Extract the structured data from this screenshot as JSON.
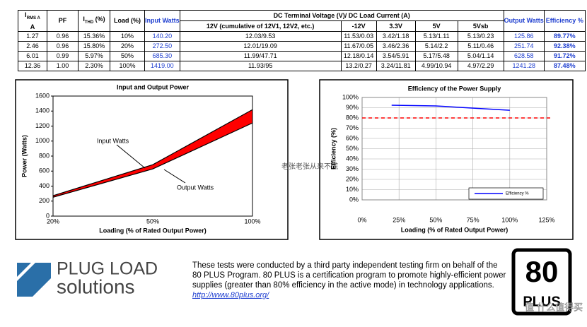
{
  "table": {
    "header_top": [
      {
        "text": "I",
        "sub": "RMS A",
        "line2": "A"
      },
      "PF",
      {
        "text": "I",
        "sub": "THD",
        "after": " (%)"
      },
      "Load (%)",
      "Input Watts",
      "DC Terminal Voltage (V)/ DC Load Current (A)",
      "Output Watts",
      "Efficiency %"
    ],
    "header_sub": [
      "12V (cumulative of 12V1, 12V2, etc.)",
      "-12V",
      "3.3V",
      "5V",
      "5Vsb"
    ],
    "rows": [
      [
        "1.27",
        "0.96",
        "15.36%",
        "10%",
        "140.20",
        "12.03/9.53",
        "11.53/0.03",
        "3.42/1.18",
        "5.13/1.11",
        "5.13/0.23",
        "125.86",
        "89.77%"
      ],
      [
        "2.46",
        "0.96",
        "15.80%",
        "20%",
        "272.50",
        "12.01/19.09",
        "11.67/0.05",
        "3.46/2.36",
        "5.14/2.2",
        "5.11/0.46",
        "251.74",
        "92.38%"
      ],
      [
        "6.01",
        "0.99",
        "5.97%",
        "50%",
        "685.30",
        "11.99/47.71",
        "12.18/0.14",
        "3.54/5.91",
        "5.17/5.48",
        "5.04/1.14",
        "628.58",
        "91.72%"
      ],
      [
        "12.36",
        "1.00",
        "2.30%",
        "100%",
        "1419.00",
        "11.93/95",
        "13.2/0.27",
        "3.24/11.81",
        "4.99/10.94",
        "4.97/2.29",
        "1241.28",
        "87.48%"
      ]
    ]
  },
  "chart_data": [
    {
      "type": "band",
      "title": "Input and Output Power",
      "x_label": "Loading (% of Rated Output Power)",
      "y_label": "Power (Watts)",
      "categories": [
        "20%",
        "50%",
        "100%"
      ],
      "series": [
        {
          "name": "Input Watts",
          "color": "#000000",
          "values": [
            272.5,
            685.3,
            1419
          ]
        },
        {
          "name": "Output Watts",
          "color": "#000000",
          "values": [
            251.74,
            628.58,
            1241.28
          ]
        }
      ],
      "fill_color": "#ff0000",
      "ylim": [
        0,
        1600
      ],
      "yticks": [
        0,
        200,
        400,
        600,
        800,
        1000,
        1200,
        1400,
        1600
      ]
    },
    {
      "type": "line",
      "title": "Efficiency of the Power Supply",
      "x_label": "Loading (% of Rated Output Power)",
      "y_label": "Efficiency (%)",
      "x": [
        20,
        50,
        100
      ],
      "series": [
        {
          "name": "Efficiency %",
          "color": "#0000ff",
          "values": [
            92.38,
            91.72,
            87.48
          ]
        }
      ],
      "xlim": [
        0,
        125
      ],
      "xticks": [
        {
          "value": 0,
          "label": "0%"
        },
        {
          "value": 25,
          "label": "25%"
        },
        {
          "value": 50,
          "label": "50%"
        },
        {
          "value": 75,
          "label": "75%"
        },
        {
          "value": 100,
          "label": "100%"
        },
        {
          "value": 125,
          "label": "125%"
        }
      ],
      "ylim": [
        0,
        100
      ],
      "yticks": [
        {
          "value": 0,
          "label": "0%"
        },
        {
          "value": 10,
          "label": "10%"
        },
        {
          "value": 20,
          "label": "20%"
        },
        {
          "value": 30,
          "label": "30%"
        },
        {
          "value": 40,
          "label": "40%"
        },
        {
          "value": 50,
          "label": "50%"
        },
        {
          "value": 60,
          "label": "60%"
        },
        {
          "value": 70,
          "label": "70%"
        },
        {
          "value": 80,
          "label": "80%"
        },
        {
          "value": 90,
          "label": "90%"
        },
        {
          "value": 100,
          "label": "100%"
        }
      ],
      "grid": true,
      "legend": "lower right",
      "reference_line": {
        "value": 80,
        "color": "#ff0000"
      }
    }
  ],
  "footer": {
    "logo_top": "PLUG LOAD",
    "logo_bottom": "solutions",
    "text": [
      "These tests were conducted by a third party independent testing firm on behalf of the",
      "80 PLUS Program. 80 PLUS is a certification program to promote highly-efficient power",
      "supplies (greater than 80% efficiency in the active mode) in technology applications."
    ],
    "link": "http://www.80plus.org/",
    "badge_number": "80",
    "badge_text": "PLUS"
  },
  "watermark": "老张老张从来不慌",
  "site_mark": "值 什么值得买"
}
